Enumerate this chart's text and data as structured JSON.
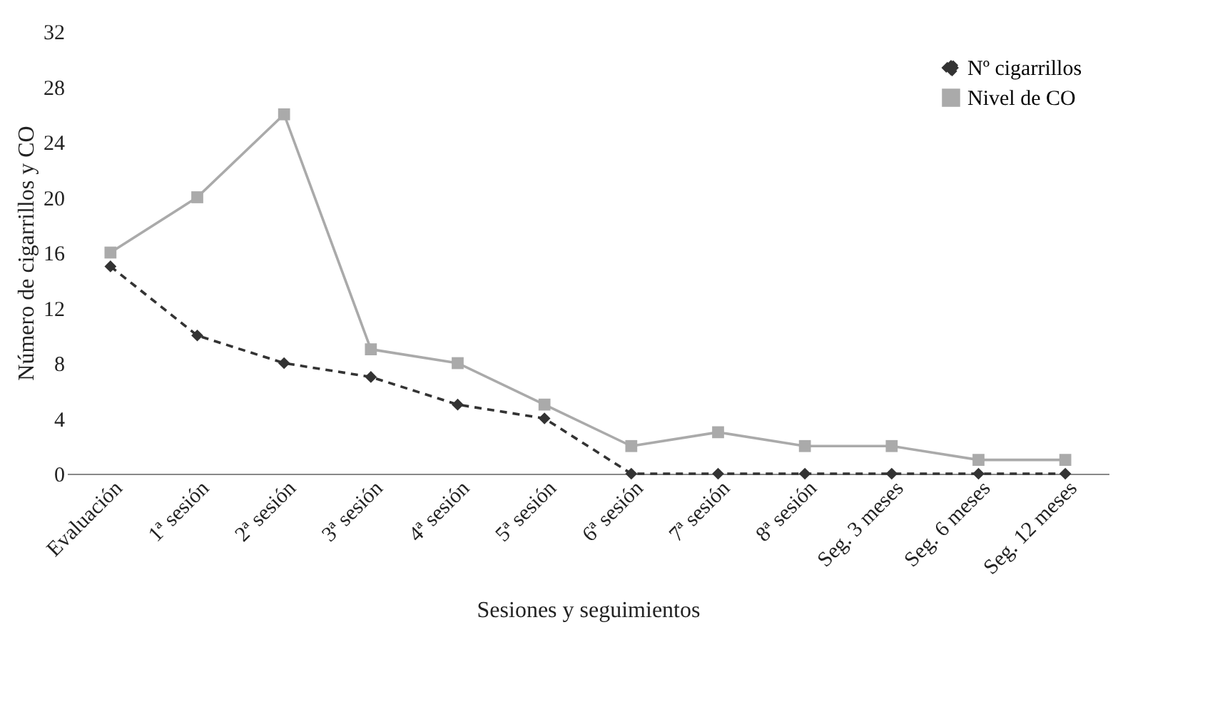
{
  "chart_data": {
    "type": "line",
    "xlabel": "Sesiones y seguimientos",
    "ylabel": "Número de cigarrillos y CO",
    "categories": [
      "Evaluación",
      "1ª sesión",
      "2ª sesión",
      "3ª sesión",
      "4ª sesión",
      "5ª sesión",
      "6ª sesión",
      "7ª sesión",
      "8ª sesión",
      "Seg. 3 meses",
      "Seg. 6 meses",
      "Seg. 12 meses"
    ],
    "series": [
      {
        "name": "Nº cigarrillos",
        "color": "#333333",
        "marker": "diamond",
        "line_style": "dashed",
        "values": [
          15,
          10,
          8,
          7,
          5,
          4,
          0,
          0,
          0,
          0,
          0,
          0
        ]
      },
      {
        "name": "Nivel de CO",
        "color": "#aaaaaa",
        "marker": "square",
        "line_style": "solid",
        "values": [
          16,
          20,
          26,
          9,
          8,
          5,
          2,
          3,
          2,
          2,
          1,
          1
        ]
      }
    ],
    "ylim": [
      0,
      32
    ],
    "yticks": [
      0,
      4,
      8,
      12,
      16,
      20,
      24,
      28,
      32
    ],
    "grid": false,
    "legend": "top right"
  }
}
